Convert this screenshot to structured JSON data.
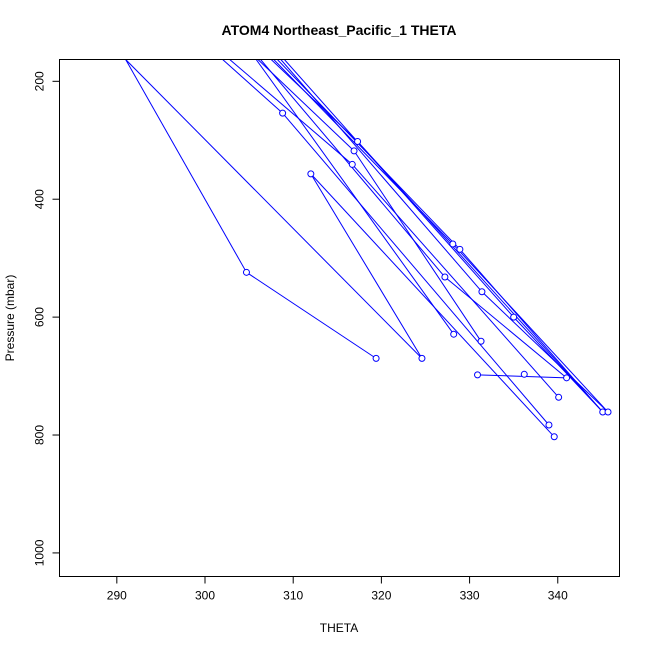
{
  "chart_data": {
    "type": "scatter",
    "title": "ATOM4 Northeast_Pacific_1 THETA",
    "xlabel": "THETA",
    "ylabel": "Pressure (mbar)",
    "xlim": [
      283.5,
      347
    ],
    "ylim": [
      1040,
      163
    ],
    "y_reversed": true,
    "x_ticks": [
      290,
      300,
      310,
      320,
      330,
      340
    ],
    "y_ticks": [
      200,
      400,
      600,
      800,
      1000
    ],
    "grid": false,
    "legend": "none",
    "color": "#0000ff",
    "markers": [
      {
        "x": 304.7,
        "y": 524
      },
      {
        "x": 319.4,
        "y": 670
      },
      {
        "x": 324.6,
        "y": 670
      },
      {
        "x": 312.0,
        "y": 357
      },
      {
        "x": 308.8,
        "y": 254
      },
      {
        "x": 317.3,
        "y": 302
      },
      {
        "x": 316.9,
        "y": 318
      },
      {
        "x": 316.7,
        "y": 341
      },
      {
        "x": 327.2,
        "y": 532
      },
      {
        "x": 328.2,
        "y": 629
      },
      {
        "x": 328.1,
        "y": 476
      },
      {
        "x": 328.9,
        "y": 485
      },
      {
        "x": 331.4,
        "y": 557
      },
      {
        "x": 335.0,
        "y": 600
      },
      {
        "x": 331.3,
        "y": 641
      },
      {
        "x": 330.9,
        "y": 698
      },
      {
        "x": 336.2,
        "y": 697
      },
      {
        "x": 341.0,
        "y": 703
      },
      {
        "x": 340.1,
        "y": 736
      },
      {
        "x": 339.0,
        "y": 783
      },
      {
        "x": 339.6,
        "y": 803
      },
      {
        "x": 345.1,
        "y": 761
      },
      {
        "x": 345.7,
        "y": 761
      }
    ],
    "segments": [
      {
        "x1": 291.0,
        "y1": 163,
        "x2": 304.7,
        "y2": 524
      },
      {
        "x1": 304.7,
        "y1": 524,
        "x2": 319.4,
        "y2": 670
      },
      {
        "x1": 291.0,
        "y1": 163,
        "x2": 324.6,
        "y2": 670
      },
      {
        "x1": 324.6,
        "y1": 670,
        "x2": 312.0,
        "y2": 357
      },
      {
        "x1": 312.0,
        "y1": 357,
        "x2": 339.6,
        "y2": 803
      },
      {
        "x1": 302.0,
        "y1": 163,
        "x2": 308.8,
        "y2": 254
      },
      {
        "x1": 308.8,
        "y1": 254,
        "x2": 339.0,
        "y2": 783
      },
      {
        "x1": 302.8,
        "y1": 163,
        "x2": 316.7,
        "y2": 341
      },
      {
        "x1": 316.7,
        "y1": 341,
        "x2": 340.1,
        "y2": 736
      },
      {
        "x1": 305.8,
        "y1": 163,
        "x2": 328.2,
        "y2": 629
      },
      {
        "x1": 306.0,
        "y1": 163,
        "x2": 316.9,
        "y2": 318
      },
      {
        "x1": 316.9,
        "y1": 318,
        "x2": 331.3,
        "y2": 641
      },
      {
        "x1": 306.3,
        "y1": 163,
        "x2": 327.2,
        "y2": 532
      },
      {
        "x1": 327.2,
        "y1": 532,
        "x2": 341.0,
        "y2": 703
      },
      {
        "x1": 341.0,
        "y1": 703,
        "x2": 330.9,
        "y2": 698
      },
      {
        "x1": 307.5,
        "y1": 163,
        "x2": 317.3,
        "y2": 302
      },
      {
        "x1": 317.3,
        "y1": 302,
        "x2": 345.1,
        "y2": 761
      },
      {
        "x1": 307.8,
        "y1": 163,
        "x2": 328.1,
        "y2": 476
      },
      {
        "x1": 328.1,
        "y1": 476,
        "x2": 345.7,
        "y2": 761
      },
      {
        "x1": 308.2,
        "y1": 163,
        "x2": 328.9,
        "y2": 485
      },
      {
        "x1": 328.9,
        "y1": 485,
        "x2": 345.1,
        "y2": 761
      },
      {
        "x1": 308.6,
        "y1": 163,
        "x2": 331.4,
        "y2": 557
      },
      {
        "x1": 331.4,
        "y1": 557,
        "x2": 345.7,
        "y2": 761
      },
      {
        "x1": 309.0,
        "y1": 163,
        "x2": 335.0,
        "y2": 600
      },
      {
        "x1": 335.0,
        "y1": 600,
        "x2": 345.1,
        "y2": 761
      }
    ]
  }
}
